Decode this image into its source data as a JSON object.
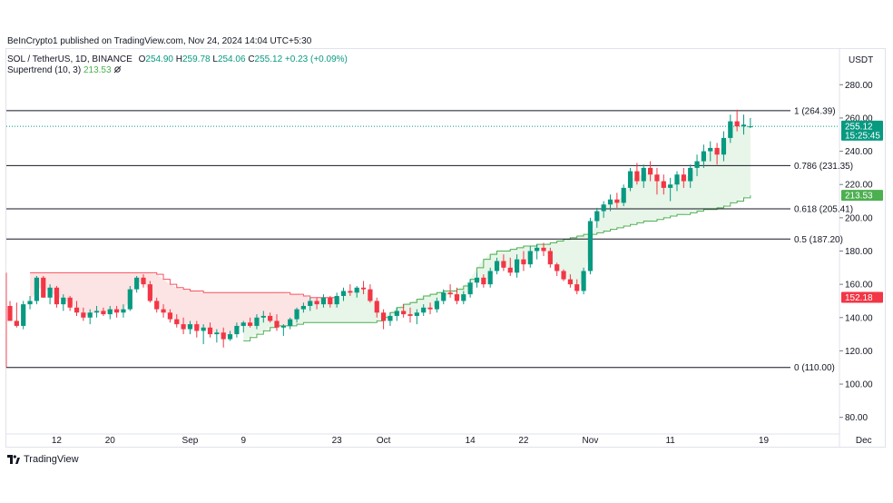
{
  "header": {
    "attribution": "BeInCrypto1 published on TradingView.com, Nov 24, 2024 14:04 UTC+5:30",
    "symbol": "SOL / TetherUS, 1D, BINANCE",
    "o_label": "O",
    "o_value": "254.90",
    "h_label": "H",
    "h_value": "259.78",
    "l_label": "L",
    "l_value": "254.06",
    "c_label": "C",
    "c_value": "255.12",
    "change": "+0.23 (+0.09%)",
    "indicator_name": "Supertrend (10, 3)",
    "indicator_value": "213.53",
    "indicator_icon": "eye-off-icon"
  },
  "currency": "USDT",
  "footer": {
    "brand": "TradingView"
  },
  "colors": {
    "up": "#089981",
    "down": "#f23645",
    "supertrend_up": "#4caf50",
    "supertrend_down": "#f7525f",
    "fill_up": "#e8f5e9",
    "fill_down": "#fde4e4",
    "fib": "#131722"
  },
  "chart_data": {
    "type": "candlestick",
    "y_range": [
      70,
      290
    ],
    "y_ticks": [
      80,
      100,
      120,
      140,
      160,
      180,
      200,
      220,
      240,
      260,
      280
    ],
    "y_tick_labels": [
      "80.00",
      "100.00",
      "120.00",
      "140.00",
      "160.00",
      "180.00",
      "200.00",
      "220.00",
      "240.00",
      "260.00",
      "280.00"
    ],
    "x_ticks": [
      {
        "i": 7,
        "label": "12"
      },
      {
        "i": 15,
        "label": "20"
      },
      {
        "i": 27,
        "label": "Sep"
      },
      {
        "i": 35,
        "label": "9"
      },
      {
        "i": 49,
        "label": "23"
      },
      {
        "i": 56,
        "label": "Oct"
      },
      {
        "i": 69,
        "label": "14"
      },
      {
        "i": 77,
        "label": "22"
      },
      {
        "i": 87,
        "label": "Nov"
      },
      {
        "i": 99,
        "label": "11"
      },
      {
        "i": 113,
        "label": "19"
      },
      {
        "i": 128,
        "label": "Dec"
      }
    ],
    "fib_levels": [
      {
        "label": "1 (264.39)",
        "value": 264.39
      },
      {
        "label": "0.786 (231.35)",
        "value": 231.35
      },
      {
        "label": "0.618 (205.41)",
        "value": 205.41
      },
      {
        "label": "0.5 (187.20)",
        "value": 187.2
      },
      {
        "label": "0 (110.00)",
        "value": 110.0
      }
    ],
    "price_tags": [
      {
        "label": "255.12",
        "sub": "15:25:45",
        "value": 255.12,
        "color": "#089981"
      },
      {
        "label": "213.53",
        "value": 213.53,
        "color": "#4caf50"
      },
      {
        "label": "152.18",
        "value": 152.18,
        "color": "#f23645"
      }
    ],
    "candles": [
      [
        147,
        150,
        138,
        138
      ],
      [
        138,
        149,
        134,
        135
      ],
      [
        135,
        150,
        133,
        148
      ],
      [
        148,
        153,
        145,
        150
      ],
      [
        150,
        165,
        148,
        164
      ],
      [
        164,
        165,
        152,
        152
      ],
      [
        152,
        160,
        148,
        158
      ],
      [
        158,
        159,
        146,
        148
      ],
      [
        148,
        154,
        144,
        152
      ],
      [
        152,
        153,
        144,
        146
      ],
      [
        146,
        150,
        141,
        143
      ],
      [
        143,
        146,
        138,
        140
      ],
      [
        140,
        145,
        136,
        143
      ],
      [
        143,
        147,
        140,
        144
      ],
      [
        144,
        146,
        141,
        142
      ],
      [
        142,
        147,
        139,
        145
      ],
      [
        145,
        147,
        140,
        143
      ],
      [
        143,
        148,
        140,
        145
      ],
      [
        145,
        159,
        144,
        157
      ],
      [
        157,
        165,
        155,
        164
      ],
      [
        164,
        166,
        158,
        160
      ],
      [
        160,
        162,
        149,
        150
      ],
      [
        150,
        152,
        143,
        145
      ],
      [
        145,
        148,
        140,
        143
      ],
      [
        143,
        145,
        137,
        139
      ],
      [
        139,
        142,
        134,
        136
      ],
      [
        136,
        140,
        130,
        133
      ],
      [
        133,
        138,
        130,
        136
      ],
      [
        136,
        138,
        128,
        132
      ],
      [
        132,
        136,
        124,
        134
      ],
      [
        134,
        137,
        128,
        130
      ],
      [
        130,
        133,
        125,
        131
      ],
      [
        131,
        134,
        122,
        127
      ],
      [
        127,
        132,
        126,
        130
      ],
      [
        130,
        137,
        128,
        135
      ],
      [
        135,
        138,
        131,
        137
      ],
      [
        137,
        140,
        134,
        135
      ],
      [
        135,
        142,
        133,
        140
      ],
      [
        140,
        144,
        137,
        141
      ],
      [
        141,
        143,
        137,
        138
      ],
      [
        138,
        142,
        132,
        134
      ],
      [
        134,
        136,
        129,
        135
      ],
      [
        135,
        140,
        133,
        139
      ],
      [
        139,
        146,
        137,
        145
      ],
      [
        145,
        149,
        143,
        147
      ],
      [
        147,
        152,
        144,
        150
      ],
      [
        150,
        152,
        145,
        148
      ],
      [
        148,
        154,
        146,
        152
      ],
      [
        152,
        153,
        146,
        148
      ],
      [
        148,
        155,
        146,
        153
      ],
      [
        153,
        158,
        150,
        156
      ],
      [
        156,
        160,
        153,
        155
      ],
      [
        155,
        159,
        152,
        158
      ],
      [
        158,
        162,
        154,
        157
      ],
      [
        157,
        160,
        149,
        150
      ],
      [
        150,
        152,
        140,
        143
      ],
      [
        143,
        145,
        133,
        138
      ],
      [
        138,
        143,
        135,
        141
      ],
      [
        141,
        146,
        138,
        144
      ],
      [
        144,
        148,
        140,
        142
      ],
      [
        142,
        146,
        137,
        141
      ],
      [
        141,
        145,
        136,
        143
      ],
      [
        143,
        148,
        141,
        146
      ],
      [
        146,
        149,
        142,
        145
      ],
      [
        145,
        152,
        143,
        150
      ],
      [
        150,
        157,
        148,
        155
      ],
      [
        155,
        160,
        152,
        154
      ],
      [
        154,
        158,
        148,
        150
      ],
      [
        150,
        156,
        148,
        154
      ],
      [
        154,
        163,
        152,
        161
      ],
      [
        161,
        167,
        158,
        164
      ],
      [
        164,
        166,
        158,
        160
      ],
      [
        160,
        170,
        158,
        168
      ],
      [
        168,
        176,
        166,
        174
      ],
      [
        174,
        178,
        168,
        170
      ],
      [
        170,
        176,
        165,
        167
      ],
      [
        167,
        178,
        164,
        175
      ],
      [
        175,
        180,
        168,
        172
      ],
      [
        172,
        183,
        170,
        180
      ],
      [
        180,
        184,
        175,
        182
      ],
      [
        182,
        185,
        177,
        180
      ],
      [
        180,
        182,
        170,
        172
      ],
      [
        172,
        173,
        165,
        168
      ],
      [
        168,
        169,
        162,
        163
      ],
      [
        163,
        166,
        158,
        160
      ],
      [
        160,
        163,
        154,
        156
      ],
      [
        156,
        170,
        154,
        168
      ],
      [
        168,
        200,
        166,
        198
      ],
      [
        198,
        206,
        194,
        204
      ],
      [
        204,
        210,
        200,
        208
      ],
      [
        208,
        214,
        204,
        211
      ],
      [
        211,
        215,
        206,
        209
      ],
      [
        209,
        220,
        207,
        218
      ],
      [
        218,
        230,
        216,
        228
      ],
      [
        228,
        233,
        220,
        222
      ],
      [
        222,
        232,
        218,
        230
      ],
      [
        230,
        234,
        222,
        226
      ],
      [
        226,
        230,
        214,
        222
      ],
      [
        222,
        226,
        214,
        218
      ],
      [
        218,
        224,
        210,
        220
      ],
      [
        220,
        228,
        216,
        226
      ],
      [
        226,
        230,
        218,
        222
      ],
      [
        222,
        232,
        218,
        230
      ],
      [
        230,
        238,
        225,
        234
      ],
      [
        234,
        244,
        230,
        240
      ],
      [
        240,
        246,
        234,
        242
      ],
      [
        242,
        245,
        232,
        238
      ],
      [
        238,
        252,
        234,
        248
      ],
      [
        248,
        262,
        245,
        258
      ],
      [
        258,
        265,
        252,
        255
      ],
      [
        255,
        262,
        250,
        256
      ],
      [
        255,
        260,
        254,
        255
      ]
    ],
    "supertrend": [
      {
        "trend": "down",
        "values": [
          null,
          null,
          null,
          167,
          167,
          167,
          167,
          167,
          167,
          167,
          167,
          167,
          167,
          167,
          167,
          167,
          167,
          167,
          167,
          167,
          167,
          167,
          166,
          163,
          160,
          158,
          157,
          156,
          156,
          155,
          155,
          155,
          155,
          155,
          155,
          155,
          155,
          155,
          155,
          155,
          155,
          155,
          154,
          154,
          153,
          152,
          152,
          152,
          152,
          152
        ]
      },
      {
        "trend": "up",
        "values": [
          126,
          128,
          130,
          132,
          134,
          135,
          135,
          135,
          136,
          137,
          137,
          137,
          137,
          137,
          137,
          137,
          137,
          137,
          137,
          137,
          138,
          140,
          143,
          146,
          148,
          149,
          151,
          153,
          154,
          155,
          156,
          156,
          157,
          159,
          163,
          170,
          175,
          178,
          180,
          180,
          181,
          182,
          183,
          183,
          184,
          184,
          185,
          186,
          187,
          188,
          189,
          190,
          190,
          191,
          192,
          193,
          194,
          195,
          196,
          197,
          198,
          198,
          199,
          200,
          201,
          202,
          202,
          203,
          204,
          205,
          205,
          206,
          207,
          209,
          210,
          212,
          213.53
        ]
      }
    ]
  }
}
